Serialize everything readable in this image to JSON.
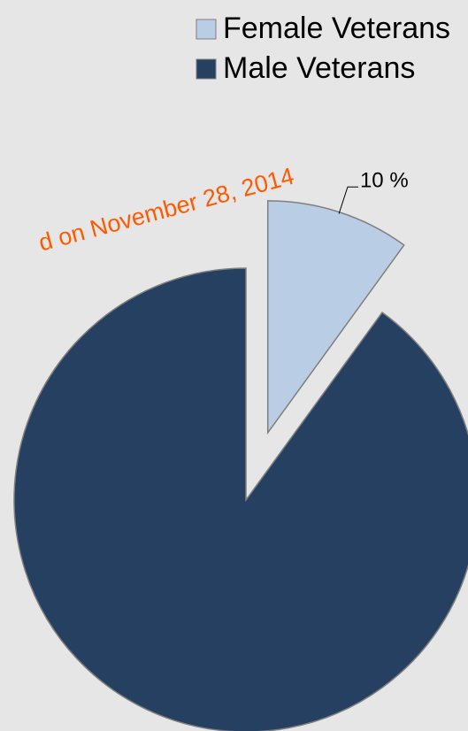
{
  "chart_data": {
    "type": "pie",
    "labels": [
      "Female Veterans",
      "Male Veterans"
    ],
    "values": [
      10,
      90
    ],
    "value_labels": [
      "10 %",
      null
    ],
    "colors": [
      "#b9cde5",
      "#254061"
    ],
    "explode": [
      true,
      false
    ],
    "legend": "top-right",
    "annotations": [
      "d on November 28, 2014"
    ]
  }
}
